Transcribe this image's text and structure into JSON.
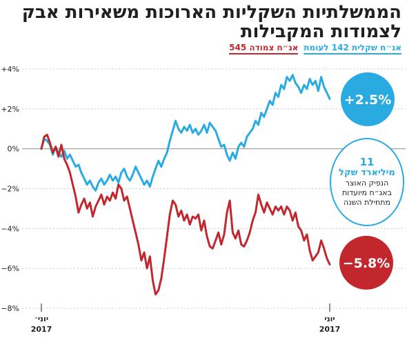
{
  "header": {
    "title": "הממשלתיות השקליות הארוכות משאירות אבק לצמודות המקבילות",
    "legend_blue": "אג״ח שקלית 142 לעומת",
    "legend_red": "אג״ח צמודה 545"
  },
  "note": {
    "number": "11",
    "headline": "מיליארד שקל",
    "body": "הנפיק האוצר באג״ח מיועדות מתחילת השנה"
  },
  "chart_data": {
    "type": "line",
    "title": "הממשלתיות השקליות הארוכות משאירות אבק לצמודות המקבילות",
    "xlabel": "",
    "ylabel": "",
    "ylim": [
      -8,
      4
    ],
    "yticks": [
      -8,
      -6,
      -4,
      -2,
      0,
      2,
      4
    ],
    "ytick_labels": [
      "−8%",
      "−6%",
      "−4%",
      "−2%",
      "0%",
      "+2%",
      "+4%"
    ],
    "x_labels": [
      {
        "month": "יוני׳",
        "year": "2017"
      },
      {
        "month": "יוני",
        "year": "2017"
      }
    ],
    "grid": true,
    "colors": {
      "blue": "#29abe2",
      "red": "#c1272d",
      "grid": "#c8c8c8"
    },
    "end_labels": {
      "blue": "+2.5%",
      "red": "−5.8%"
    },
    "series": [
      {
        "name": "אג״ח שקלית 142",
        "color": "#29abe2",
        "values": [
          0,
          0.5,
          0.4,
          0.2,
          -0.3,
          0.1,
          -0.2,
          -0.4,
          -0.1,
          -0.5,
          -0.3,
          -0.6,
          -0.9,
          -0.8,
          -1.2,
          -1.5,
          -1.8,
          -1.6,
          -1.9,
          -2.1,
          -1.7,
          -1.5,
          -1.8,
          -1.6,
          -1.3,
          -1.6,
          -1.4,
          -1.7,
          -1.2,
          -1.0,
          -1.4,
          -1.6,
          -1.3,
          -0.9,
          -1.2,
          -1.5,
          -1.8,
          -1.6,
          -1.9,
          -1.4,
          -1.0,
          -0.6,
          -0.9,
          -0.5,
          -0.2,
          0.4,
          0.9,
          1.4,
          1.0,
          0.8,
          1.1,
          0.9,
          1.2,
          0.8,
          1.0,
          0.7,
          0.9,
          1.2,
          0.8,
          1.3,
          1.1,
          0.9,
          0.5,
          0.1,
          0.2,
          -0.3,
          -0.6,
          -0.2,
          -0.5,
          0.1,
          0.3,
          0.1,
          0.6,
          0.8,
          1.0,
          1.4,
          1.2,
          1.8,
          1.6,
          2.0,
          2.4,
          2.2,
          2.8,
          2.6,
          3.2,
          3.0,
          3.6,
          3.4,
          3.7,
          3.3,
          3.1,
          2.8,
          3.2,
          3.0,
          3.5,
          3.2,
          3.4,
          2.9,
          3.6,
          3.1,
          2.8,
          2.5
        ]
      },
      {
        "name": "אג״ח צמודה 545",
        "color": "#c1272d",
        "values": [
          0,
          0.6,
          0.7,
          0.3,
          -0.2,
          0.1,
          -0.4,
          0.2,
          -0.5,
          -0.8,
          -1.2,
          -1.8,
          -2.4,
          -3.2,
          -2.8,
          -2.5,
          -3.0,
          -2.7,
          -3.4,
          -2.9,
          -2.6,
          -2.3,
          -2.8,
          -2.4,
          -2.6,
          -2.2,
          -2.5,
          -1.8,
          -2.0,
          -2.6,
          -2.4,
          -3.0,
          -3.6,
          -4.2,
          -4.8,
          -5.6,
          -5.2,
          -6.0,
          -5.4,
          -6.6,
          -7.3,
          -7.1,
          -6.5,
          -5.5,
          -4.4,
          -3.3,
          -2.6,
          -2.8,
          -3.4,
          -3.1,
          -3.6,
          -3.3,
          -3.8,
          -3.4,
          -3.5,
          -3.3,
          -4.1,
          -3.6,
          -4.4,
          -4.9,
          -5.0,
          -4.6,
          -4.2,
          -4.8,
          -4.3,
          -3.2,
          -2.6,
          -4.2,
          -4.5,
          -4.1,
          -4.8,
          -4.9,
          -4.6,
          -4.2,
          -3.6,
          -3.2,
          -2.3,
          -2.8,
          -3.2,
          -2.7,
          -3.0,
          -3.3,
          -2.9,
          -3.1,
          -2.9,
          -3.3,
          -2.9,
          -3.1,
          -3.6,
          -3.2,
          -3.9,
          -4.1,
          -4.6,
          -4.3,
          -5.1,
          -5.6,
          -5.4,
          -5.2,
          -4.6,
          -5.0,
          -5.5,
          -5.8
        ]
      }
    ]
  }
}
